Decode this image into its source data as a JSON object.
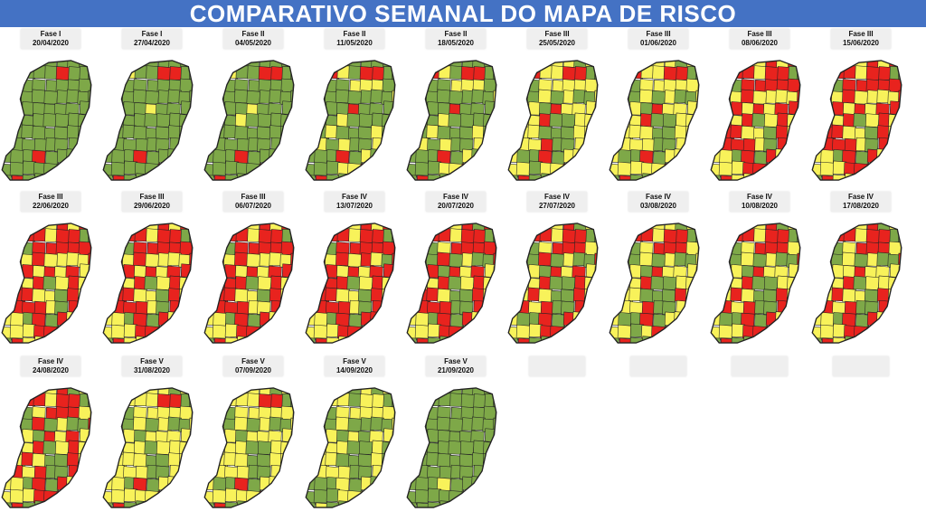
{
  "title": "COMPARATIVO SEMANAL DO MAPA DE RISCO",
  "colors": {
    "low": "#7ea848",
    "moderate": "#f8f25a",
    "high": "#e8231e",
    "border": "#222222",
    "title_bg": "#4472c4"
  },
  "maps": [
    {
      "phase": "Fase I",
      "date": "20/04/2020",
      "red": 0.06,
      "yellow": 0.0
    },
    {
      "phase": "Fase I",
      "date": "27/04/2020",
      "red": 0.07,
      "yellow": 0.02
    },
    {
      "phase": "Fase II",
      "date": "04/05/2020",
      "red": 0.07,
      "yellow": 0.04
    },
    {
      "phase": "Fase II",
      "date": "11/05/2020",
      "red": 0.09,
      "yellow": 0.15
    },
    {
      "phase": "Fase II",
      "date": "18/05/2020",
      "red": 0.09,
      "yellow": 0.15
    },
    {
      "phase": "Fase III",
      "date": "25/05/2020",
      "red": 0.12,
      "yellow": 0.58
    },
    {
      "phase": "Fase III",
      "date": "01/06/2020",
      "red": 0.1,
      "yellow": 0.65
    },
    {
      "phase": "Fase III",
      "date": "08/06/2020",
      "red": 0.45,
      "yellow": 0.48
    },
    {
      "phase": "Fase III",
      "date": "15/06/2020",
      "red": 0.45,
      "yellow": 0.48
    },
    {
      "phase": "Fase III",
      "date": "22/06/2020",
      "red": 0.42,
      "yellow": 0.5
    },
    {
      "phase": "Fase III",
      "date": "29/06/2020",
      "red": 0.45,
      "yellow": 0.47
    },
    {
      "phase": "Fase III",
      "date": "06/07/2020",
      "red": 0.5,
      "yellow": 0.44
    },
    {
      "phase": "Fase IV",
      "date": "13/07/2020",
      "red": 0.55,
      "yellow": 0.36
    },
    {
      "phase": "Fase IV",
      "date": "20/07/2020",
      "red": 0.38,
      "yellow": 0.4
    },
    {
      "phase": "Fase IV",
      "date": "27/07/2020",
      "red": 0.3,
      "yellow": 0.45
    },
    {
      "phase": "Fase IV",
      "date": "03/08/2020",
      "red": 0.2,
      "yellow": 0.5
    },
    {
      "phase": "Fase IV",
      "date": "10/08/2020",
      "red": 0.25,
      "yellow": 0.5
    },
    {
      "phase": "Fase IV",
      "date": "17/08/2020",
      "red": 0.25,
      "yellow": 0.55
    },
    {
      "phase": "Fase IV",
      "date": "24/08/2020",
      "red": 0.28,
      "yellow": 0.5
    },
    {
      "phase": "Fase V",
      "date": "31/08/2020",
      "red": 0.08,
      "yellow": 0.7
    },
    {
      "phase": "Fase V",
      "date": "07/09/2020",
      "red": 0.07,
      "yellow": 0.68
    },
    {
      "phase": "Fase V",
      "date": "14/09/2020",
      "red": 0.0,
      "yellow": 0.5
    },
    {
      "phase": "Fase V",
      "date": "21/09/2020",
      "red": 0.0,
      "yellow": 0.03
    }
  ],
  "empty_slots": 4
}
